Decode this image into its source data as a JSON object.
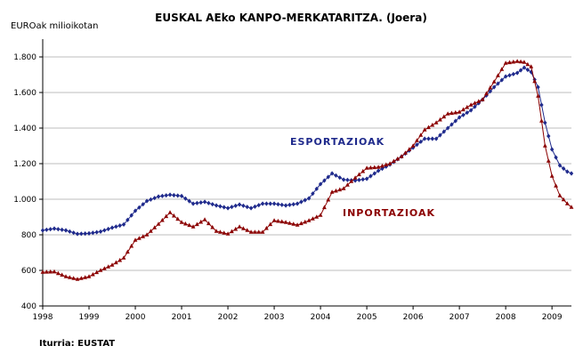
{
  "chart_data": {
    "type": "line",
    "title": "EUSKAL AEko KANPO-MERKATARITZA. (Joera)",
    "ylabel": "EUROak milioikotan",
    "xlabel": "",
    "source": "Iturria: EUSTAT",
    "ylim": [
      400,
      1900
    ],
    "xlim": [
      1998,
      2009.42
    ],
    "yticks": [
      400,
      600,
      800,
      1000,
      1200,
      1400,
      1600,
      1800
    ],
    "ytick_labels": [
      "400",
      "600",
      "800",
      "1.000",
      "1.200",
      "1.400",
      "1.600",
      "1.800"
    ],
    "xticks": [
      "1998",
      "1999",
      "2000",
      "2001",
      "2002",
      "2003",
      "2004",
      "2005",
      "2006",
      "2007",
      "2008",
      "2009"
    ],
    "grid": true,
    "series": [
      {
        "name": "ESPORTAZIOAK",
        "color": "#1f2a8c",
        "marker": "diamond",
        "points": [
          [
            1998.0,
            825
          ],
          [
            1998.25,
            835
          ],
          [
            1998.5,
            825
          ],
          [
            1998.75,
            805
          ],
          [
            1999.0,
            808
          ],
          [
            1999.25,
            818
          ],
          [
            1999.5,
            840
          ],
          [
            1999.75,
            858
          ],
          [
            2000.0,
            935
          ],
          [
            2000.25,
            990
          ],
          [
            2000.5,
            1015
          ],
          [
            2000.75,
            1025
          ],
          [
            2001.0,
            1018
          ],
          [
            2001.25,
            975
          ],
          [
            2001.5,
            985
          ],
          [
            2001.75,
            965
          ],
          [
            2002.0,
            950
          ],
          [
            2002.25,
            970
          ],
          [
            2002.5,
            950
          ],
          [
            2002.75,
            975
          ],
          [
            2003.0,
            975
          ],
          [
            2003.25,
            965
          ],
          [
            2003.5,
            975
          ],
          [
            2003.75,
            1005
          ],
          [
            2004.0,
            1085
          ],
          [
            2004.25,
            1145
          ],
          [
            2004.5,
            1110
          ],
          [
            2004.75,
            1105
          ],
          [
            2005.0,
            1115
          ],
          [
            2005.25,
            1160
          ],
          [
            2005.5,
            1195
          ],
          [
            2005.75,
            1240
          ],
          [
            2006.0,
            1290
          ],
          [
            2006.25,
            1340
          ],
          [
            2006.5,
            1340
          ],
          [
            2006.75,
            1400
          ],
          [
            2007.0,
            1460
          ],
          [
            2007.25,
            1500
          ],
          [
            2007.5,
            1560
          ],
          [
            2007.75,
            1630
          ],
          [
            2008.0,
            1690
          ],
          [
            2008.25,
            1710
          ],
          [
            2008.4,
            1740
          ],
          [
            2008.55,
            1715
          ],
          [
            2008.7,
            1630
          ],
          [
            2008.85,
            1430
          ],
          [
            2009.0,
            1280
          ],
          [
            2009.17,
            1190
          ],
          [
            2009.33,
            1155
          ],
          [
            2009.42,
            1145
          ]
        ]
      },
      {
        "name": "INPORTAZIOAK",
        "color": "#8b0000",
        "marker": "triangle",
        "points": [
          [
            1998.0,
            590
          ],
          [
            1998.25,
            592
          ],
          [
            1998.5,
            565
          ],
          [
            1998.75,
            550
          ],
          [
            1999.0,
            565
          ],
          [
            1999.25,
            600
          ],
          [
            1999.5,
            630
          ],
          [
            1999.75,
            670
          ],
          [
            2000.0,
            770
          ],
          [
            2000.25,
            800
          ],
          [
            2000.5,
            860
          ],
          [
            2000.75,
            925
          ],
          [
            2001.0,
            870
          ],
          [
            2001.25,
            845
          ],
          [
            2001.5,
            885
          ],
          [
            2001.75,
            820
          ],
          [
            2002.0,
            805
          ],
          [
            2002.25,
            845
          ],
          [
            2002.5,
            815
          ],
          [
            2002.75,
            815
          ],
          [
            2003.0,
            880
          ],
          [
            2003.25,
            870
          ],
          [
            2003.5,
            855
          ],
          [
            2003.75,
            880
          ],
          [
            2004.0,
            910
          ],
          [
            2004.25,
            1040
          ],
          [
            2004.5,
            1060
          ],
          [
            2004.75,
            1120
          ],
          [
            2005.0,
            1175
          ],
          [
            2005.25,
            1180
          ],
          [
            2005.5,
            1200
          ],
          [
            2005.75,
            1240
          ],
          [
            2006.0,
            1300
          ],
          [
            2006.25,
            1390
          ],
          [
            2006.5,
            1430
          ],
          [
            2006.75,
            1480
          ],
          [
            2007.0,
            1490
          ],
          [
            2007.25,
            1530
          ],
          [
            2007.5,
            1560
          ],
          [
            2007.75,
            1660
          ],
          [
            2008.0,
            1765
          ],
          [
            2008.25,
            1775
          ],
          [
            2008.4,
            1770
          ],
          [
            2008.55,
            1745
          ],
          [
            2008.7,
            1580
          ],
          [
            2008.85,
            1300
          ],
          [
            2009.0,
            1130
          ],
          [
            2009.17,
            1020
          ],
          [
            2009.33,
            975
          ],
          [
            2009.42,
            955
          ]
        ]
      }
    ]
  }
}
